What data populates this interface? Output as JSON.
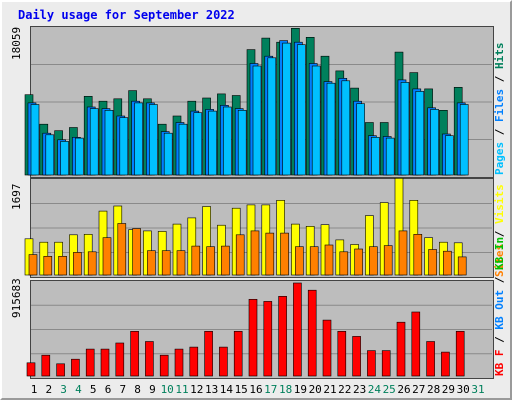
{
  "title": "Daily usage for September 2022",
  "colors": {
    "hits": "#00805c",
    "files": "#0080ff",
    "pages": "#00c0ff",
    "visits": "#ffff00",
    "sites": "#ff8000",
    "kbin": "#00c000",
    "kbout": "#0080ff",
    "kbf": "#ff0000"
  },
  "axis_labels": {
    "top_max": "18059",
    "mid_max": "1697",
    "bot_max": "915683"
  },
  "right_labels": {
    "pages": "Pages",
    "sep1": " / ",
    "files": "Files",
    "sep2": " / ",
    "hits": "Hits",
    "visits": "Visits",
    "sep3": " / ",
    "sites": "Sites",
    "sep4": " / ",
    "kbf": "KB F",
    "sep5": " / ",
    "kbout": "KB Out",
    "sep6": " / ",
    "kbin": "KB In"
  },
  "chart_data": [
    {
      "type": "bar",
      "title": "Daily usage for September 2022",
      "categories": [
        "1",
        "2",
        "3",
        "4",
        "5",
        "6",
        "7",
        "8",
        "9",
        "10",
        "11",
        "12",
        "13",
        "14",
        "15",
        "16",
        "17",
        "18",
        "19",
        "20",
        "21",
        "22",
        "23",
        "24",
        "25",
        "26",
        "27",
        "28",
        "29",
        "30",
        "31"
      ],
      "ylim": [
        0,
        18059
      ],
      "series": [
        {
          "name": "Hits",
          "values": [
            9800,
            6200,
            5400,
            5800,
            9600,
            9000,
            9300,
            10300,
            9300,
            6200,
            7200,
            9000,
            9400,
            9900,
            9700,
            15300,
            16700,
            16200,
            17900,
            16800,
            14500,
            12700,
            10600,
            6400,
            6400,
            15000,
            12500,
            10500,
            7900,
            10700,
            0
          ]
        },
        {
          "name": "Files",
          "values": [
            8800,
            5100,
            4300,
            4600,
            8300,
            8100,
            7200,
            9000,
            8800,
            5300,
            6400,
            7800,
            8000,
            8500,
            8100,
            13600,
            14500,
            16400,
            16200,
            13600,
            11400,
            11800,
            9000,
            4800,
            4700,
            11600,
            10500,
            8200,
            5000,
            8800,
            0
          ]
        },
        {
          "name": "Pages",
          "values": [
            8600,
            4900,
            4100,
            4500,
            8100,
            7900,
            7000,
            8800,
            8600,
            5100,
            6200,
            7600,
            7800,
            8300,
            7900,
            13300,
            14300,
            16100,
            15900,
            13300,
            11200,
            11500,
            8700,
            4600,
            4500,
            11300,
            10200,
            8000,
            4800,
            8600,
            0
          ]
        }
      ]
    },
    {
      "type": "bar",
      "categories": [
        "1",
        "2",
        "3",
        "4",
        "5",
        "6",
        "7",
        "8",
        "9",
        "10",
        "11",
        "12",
        "13",
        "14",
        "15",
        "16",
        "17",
        "18",
        "19",
        "20",
        "21",
        "22",
        "23",
        "24",
        "25",
        "26",
        "27",
        "28",
        "29",
        "30",
        "31"
      ],
      "ylim": [
        0,
        1697
      ],
      "series": [
        {
          "name": "Visits",
          "values": [
            640,
            580,
            580,
            710,
            720,
            1130,
            1220,
            800,
            780,
            770,
            900,
            1010,
            1210,
            880,
            1180,
            1240,
            1240,
            1320,
            900,
            860,
            890,
            620,
            540,
            1050,
            1280,
            1710,
            1320,
            660,
            580,
            570,
            0
          ]
        },
        {
          "name": "Sites",
          "values": [
            360,
            330,
            330,
            400,
            410,
            660,
            910,
            820,
            430,
            430,
            430,
            510,
            500,
            510,
            710,
            780,
            740,
            740,
            500,
            500,
            530,
            410,
            460,
            500,
            520,
            780,
            720,
            450,
            420,
            320,
            0
          ]
        }
      ]
    },
    {
      "type": "bar",
      "categories": [
        "1",
        "2",
        "3",
        "4",
        "5",
        "6",
        "7",
        "8",
        "9",
        "10",
        "11",
        "12",
        "13",
        "14",
        "15",
        "16",
        "17",
        "18",
        "19",
        "20",
        "21",
        "22",
        "23",
        "24",
        "25",
        "26",
        "27",
        "28",
        "29",
        "30",
        "31"
      ],
      "ylim": [
        0,
        915683
      ],
      "series": [
        {
          "name": "KB F",
          "values": [
            130000,
            205000,
            120000,
            165000,
            265000,
            265000,
            325000,
            440000,
            340000,
            205000,
            265000,
            285000,
            440000,
            285000,
            440000,
            755000,
            735000,
            785000,
            915683,
            845000,
            550000,
            440000,
            390000,
            250000,
            250000,
            530000,
            630000,
            340000,
            235000,
            440000,
            0
          ]
        }
      ]
    }
  ]
}
